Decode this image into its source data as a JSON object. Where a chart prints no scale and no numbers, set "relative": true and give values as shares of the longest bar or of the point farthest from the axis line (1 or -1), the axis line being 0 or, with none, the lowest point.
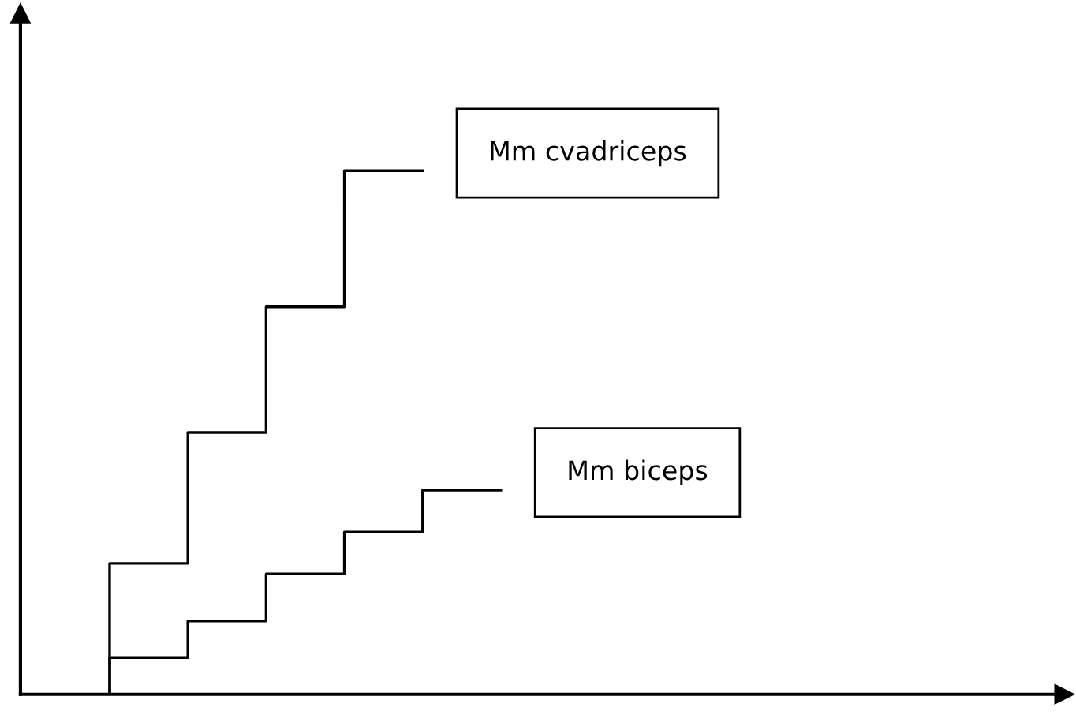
{
  "chart_data": {
    "type": "step",
    "relative": true,
    "tick_labels": false,
    "categories": [
      null,
      null,
      null,
      null,
      null,
      null
    ],
    "series": [
      {
        "name": "Mm cvadriceps",
        "color": "#000000",
        "values": [
          0,
          0.25,
          0.5,
          0.74,
          1.0,
          null
        ]
      },
      {
        "name": "Mm biceps",
        "color": "#000000",
        "values": [
          0,
          0.07,
          0.14,
          0.23,
          0.31,
          0.39
        ]
      }
    ]
  }
}
